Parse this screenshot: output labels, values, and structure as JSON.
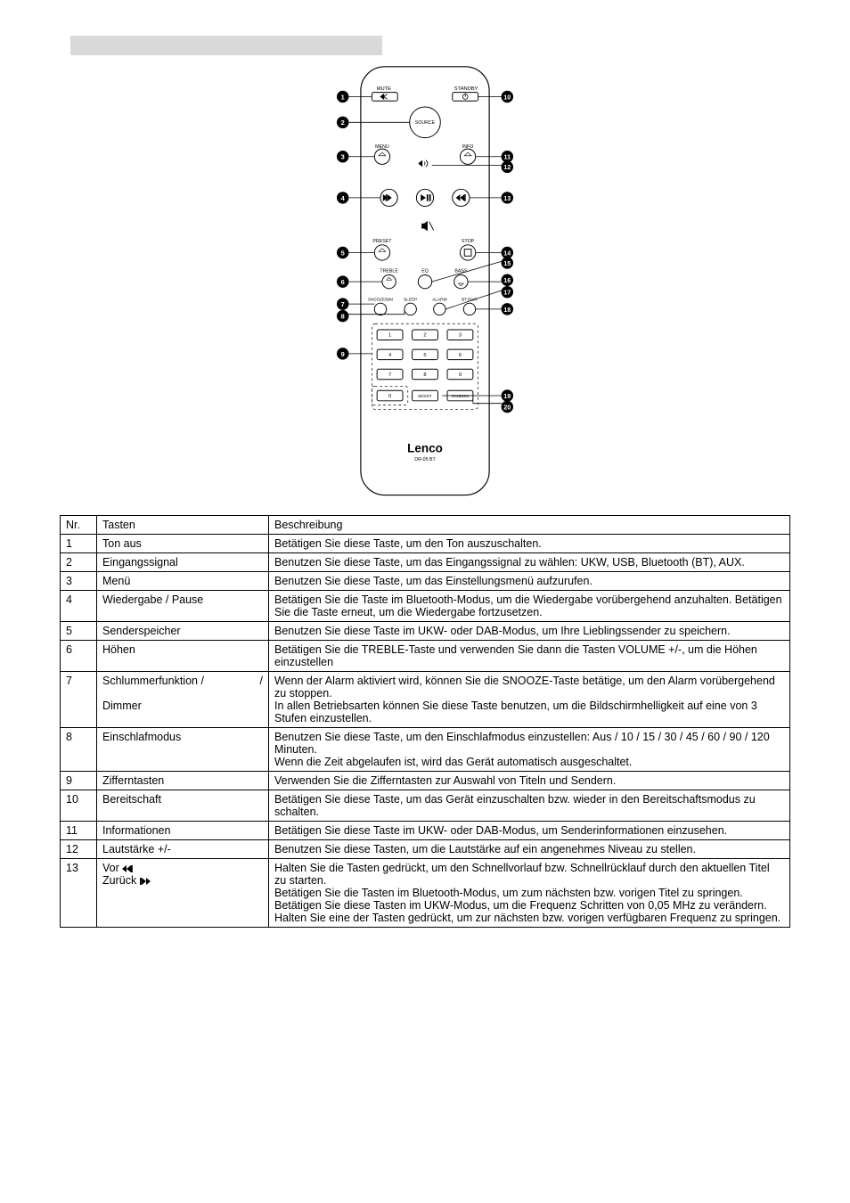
{
  "header": {
    "nr": "Nr.",
    "tasten": "Tasten",
    "beschreibung": "Beschreibung"
  },
  "remote": {
    "labels": {
      "mute": "MUTE",
      "standby": "STANDBY",
      "source": "SOURCE",
      "menu": "MENU",
      "info": "INFO",
      "preset": "PRESET",
      "stop": "STOP",
      "treble": "TREBLE",
      "eq": "EQ",
      "bass": "BASS",
      "snooze_dim": "SNOOZE/DIM",
      "sleep": "SLEEP",
      "alarm": "ALARM",
      "bt_pair": "BT.PAIR",
      "mo_st": "MO/ST",
      "random": "RANDOM",
      "brand": "Lenco",
      "model": "DR-05 BT"
    },
    "callouts_left": [
      "1",
      "2",
      "3",
      "4",
      "5",
      "6",
      "7",
      "8",
      "9"
    ],
    "callouts_right": [
      "10",
      "11",
      "12",
      "13",
      "14",
      "15",
      "16",
      "17",
      "18",
      "19",
      "20"
    ]
  },
  "rows": [
    {
      "nr": "1",
      "key": "Ton aus",
      "desc": "Betätigen Sie diese Taste, um den Ton auszuschalten."
    },
    {
      "nr": "2",
      "key": "Eingangssignal",
      "desc": "Benutzen Sie diese Taste, um das Eingangssignal zu wählen: UKW, USB, Bluetooth (BT), AUX."
    },
    {
      "nr": "3",
      "key": "Menü",
      "desc": "Benutzen Sie diese Taste, um das Einstellungsmenü aufzurufen."
    },
    {
      "nr": "4",
      "key": "Wiedergabe / Pause",
      "desc": "Betätigen Sie die Taste im Bluetooth-Modus, um die Wiedergabe vorübergehend anzuhalten. Betätigen Sie die Taste erneut, um die Wiedergabe fortzusetzen."
    },
    {
      "nr": "5",
      "key": "Senderspeicher",
      "desc": "Benutzen Sie diese Taste im UKW- oder DAB-Modus, um Ihre Lieblingssender zu speichern."
    },
    {
      "nr": "6",
      "key": "Höhen",
      "desc": "Betätigen Sie die TREBLE-Taste und verwenden Sie dann die Tasten VOLUME +/-, um die Höhen einzustellen"
    },
    {
      "nr": "7",
      "key_a": "Schlummerfunktion /",
      "key_b": "Dimmer",
      "desc": "Wenn der Alarm aktiviert wird, können Sie die SNOOZE-Taste betätige, um den Alarm vorübergehend zu stoppen.\nIn allen Betriebsarten können Sie diese Taste benutzen, um die Bildschirmhelligkeit auf eine von 3 Stufen einzustellen."
    },
    {
      "nr": "8",
      "key": "Einschlafmodus",
      "desc": "Benutzen Sie diese Taste, um den Einschlafmodus einzustellen: Aus / 10 / 15 / 30 / 45 / 60 / 90 / 120 Minuten.\nWenn die Zeit abgelaufen ist, wird das Gerät automatisch ausgeschaltet."
    },
    {
      "nr": "9",
      "key": "Zifferntasten",
      "desc": "Verwenden Sie die Zifferntasten zur Auswahl von Titeln und Sendern."
    },
    {
      "nr": "10",
      "key": "Bereitschaft",
      "desc": "Betätigen Sie diese Taste, um das Gerät einzuschalten bzw. wieder in den Bereitschaftsmodus zu schalten."
    },
    {
      "nr": "11",
      "key": "Informationen",
      "desc": "Betätigen Sie diese Taste im UKW- oder DAB-Modus, um Senderinformationen einzusehen."
    },
    {
      "nr": "12",
      "key": "Lautstärke +/-",
      "desc": "Benutzen Sie diese Tasten, um die Lautstärke auf ein angenehmes Niveau zu stellen."
    },
    {
      "nr": "13",
      "key_pre": "Vor",
      "key_post": "Zurück",
      "desc": "Halten Sie die Tasten gedrückt, um den Schnellvorlauf bzw. Schnellrücklauf durch den aktuellen Titel zu starten.\nBetätigen Sie die Tasten im Bluetooth-Modus, um zum nächsten bzw. vorigen Titel zu springen.\nBetätigen Sie diese Tasten im UKW-Modus, um die Frequenz Schritten von 0,05 MHz zu verändern. Halten Sie eine der Tasten gedrückt, um zur nächsten bzw. vorigen verfügbaren Frequenz zu springen."
    }
  ]
}
